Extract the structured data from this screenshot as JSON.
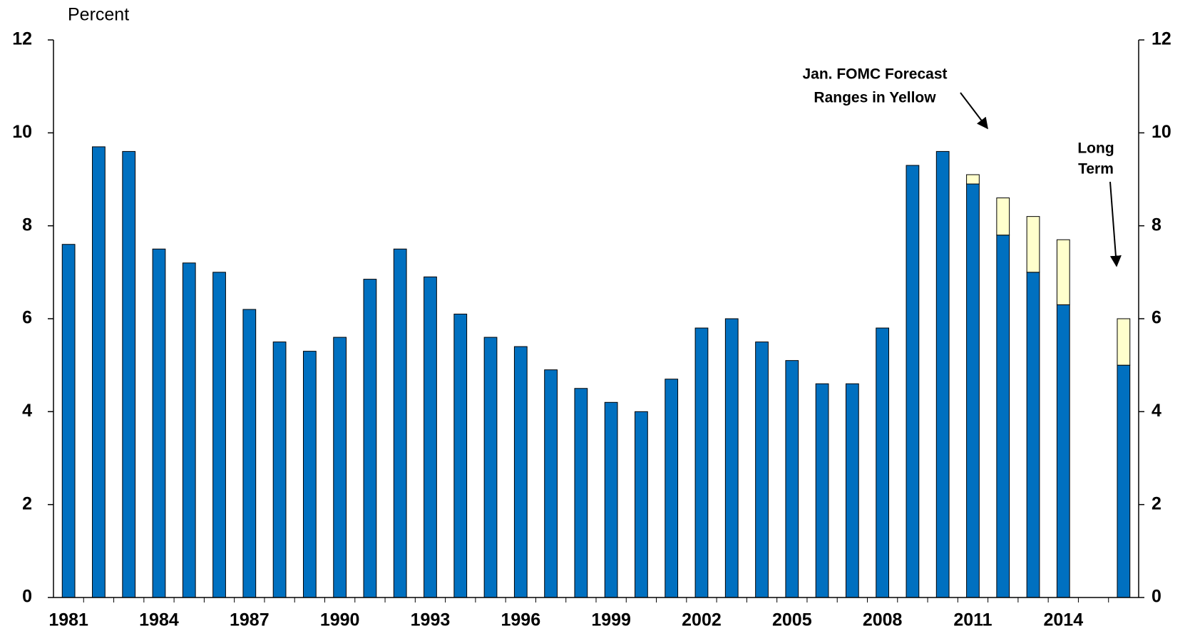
{
  "chart_data": {
    "type": "bar",
    "y_label": "Percent",
    "categories": [
      "1981",
      null,
      null,
      "1984",
      null,
      null,
      "1987",
      null,
      null,
      "1990",
      null,
      null,
      "1993",
      null,
      null,
      "1996",
      null,
      null,
      "1999",
      null,
      null,
      "2002",
      null,
      null,
      "2005",
      null,
      null,
      "2008",
      null,
      null,
      "2011",
      null,
      null,
      "2014",
      null,
      null
    ],
    "series": [
      {
        "color": "#0070c0",
        "values": [
          7.6,
          9.7,
          9.6,
          7.5,
          7.2,
          7.0,
          6.2,
          5.5,
          5.3,
          5.6,
          6.85,
          7.5,
          6.9,
          6.1,
          5.6,
          5.4,
          4.9,
          4.5,
          4.2,
          4.0,
          4.7,
          5.8,
          6.0,
          5.5,
          5.1,
          4.6,
          4.6,
          5.8,
          9.3,
          9.6,
          8.9,
          7.8,
          7.0,
          6.3,
          null,
          5.0
        ]
      },
      {
        "color": "#ffffcc",
        "values": [
          null,
          null,
          null,
          null,
          null,
          null,
          null,
          null,
          null,
          null,
          null,
          null,
          null,
          null,
          null,
          null,
          null,
          null,
          null,
          null,
          null,
          null,
          null,
          null,
          null,
          null,
          null,
          null,
          null,
          null,
          0.2,
          0.8,
          1.2,
          1.4,
          null,
          1.0
        ]
      }
    ],
    "stacked": true,
    "ylim": [
      0,
      12
    ],
    "yticks": [
      0,
      2,
      4,
      6,
      8,
      10,
      12
    ],
    "y2lim": [
      0,
      12
    ],
    "y2ticks": [
      0,
      2,
      4,
      6,
      8,
      10,
      12
    ],
    "annotations": [
      {
        "lines": [
          "Jan. FOMC Forecast",
          "Ranges in Yellow"
        ]
      },
      {
        "lines": [
          "Long",
          "Term"
        ]
      }
    ]
  }
}
